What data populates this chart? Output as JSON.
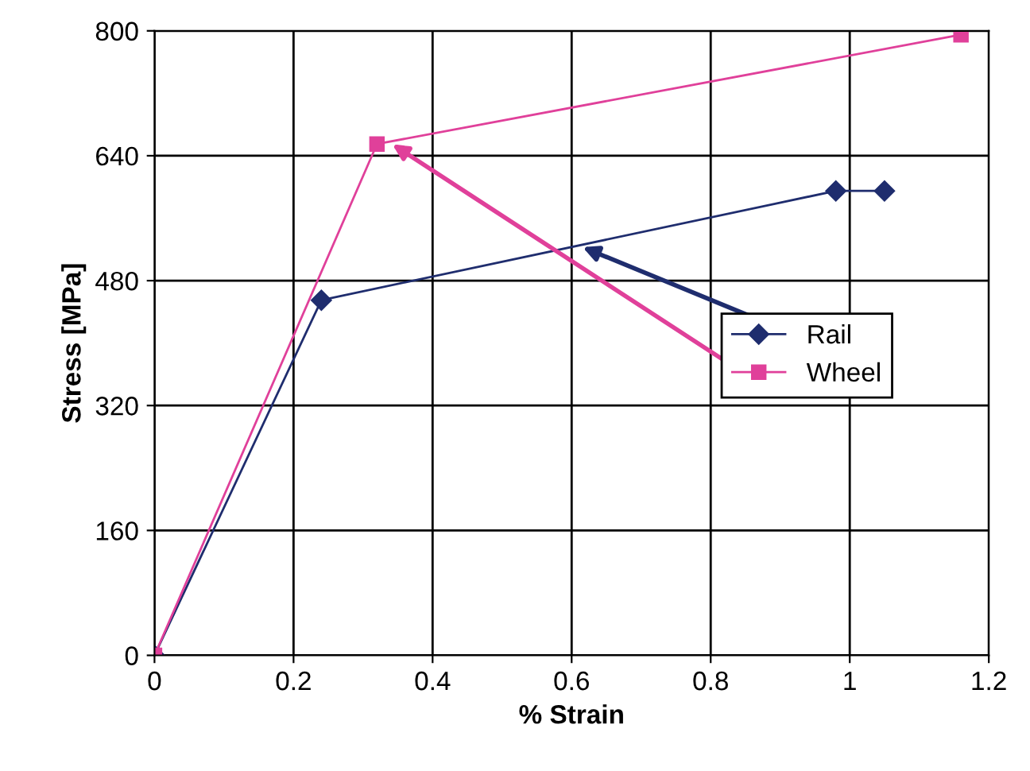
{
  "chart_data": {
    "type": "line",
    "xlabel": "% Strain",
    "ylabel": "Stress [MPa]",
    "xlim": [
      0,
      1.2
    ],
    "xticks": [
      {
        "value": 0,
        "label": "0"
      },
      0.2,
      0.4,
      0.6,
      0.8,
      {
        "value": 1,
        "label": "1"
      },
      1.2
    ],
    "ylim": [
      0,
      800
    ],
    "yticks": [
      0,
      160,
      320,
      480,
      640,
      800
    ],
    "grid": true,
    "legend": "center right",
    "series": [
      {
        "name": "Rail",
        "color": "#1f2d6e",
        "marker": "diamond",
        "x": [
          0,
          0.24,
          0.98,
          1.05
        ],
        "values": [
          0,
          455,
          595,
          595
        ]
      },
      {
        "name": "Wheel",
        "color": "#e0409a",
        "marker": "square",
        "x": [
          0,
          0.32,
          1.16
        ],
        "values": [
          0,
          655,
          795
        ]
      }
    ]
  }
}
